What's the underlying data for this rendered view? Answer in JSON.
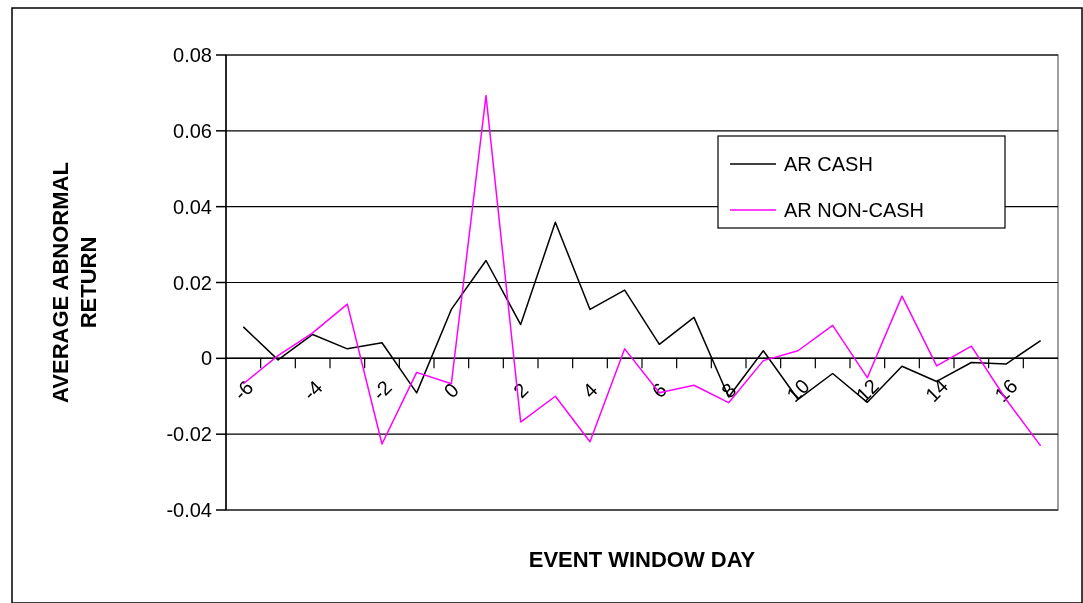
{
  "chart_data": {
    "type": "line",
    "xlabel": "EVENT WINDOW DAY",
    "ylabel": "AVERAGE ABNORMAL RETURN",
    "categories": [
      "-6",
      null,
      "-4",
      null,
      "-2",
      null,
      "0",
      null,
      "2",
      null,
      "4",
      null,
      "6",
      null,
      "8",
      null,
      "10",
      null,
      "12",
      null,
      "14",
      null,
      "16",
      null
    ],
    "series": [
      {
        "name": "AR CASH",
        "color": "#000000",
        "values": [
          0.0083,
          -0.0004,
          0.0063,
          0.0025,
          0.0041,
          -0.0091,
          0.0129,
          0.0258,
          0.0089,
          0.0359,
          0.0129,
          0.018,
          0.0037,
          0.0108,
          -0.0102,
          0.002,
          -0.0108,
          -0.004,
          -0.0116,
          -0.0021,
          -0.0061,
          -0.0011,
          -0.0015,
          0.0047
        ]
      },
      {
        "name": "AR NON-CASH",
        "color": "#ff00ff",
        "values": [
          -0.0067,
          0.0007,
          0.0067,
          0.0143,
          -0.0226,
          -0.0037,
          -0.0067,
          0.0693,
          -0.0168,
          -0.01,
          -0.022,
          0.0025,
          -0.0091,
          -0.0071,
          -0.0117,
          -0.0006,
          0.002,
          0.0087,
          -0.0051,
          0.0164,
          -0.002,
          0.0032,
          -0.0108,
          -0.0231
        ]
      }
    ],
    "ylim": [
      -0.04,
      0.08
    ],
    "yticks": [
      -0.04,
      -0.02,
      0,
      0.02,
      0.04,
      0.06,
      0.08
    ],
    "grid": "y",
    "legend": "top right",
    "marker": "none",
    "line_style": "solid"
  }
}
